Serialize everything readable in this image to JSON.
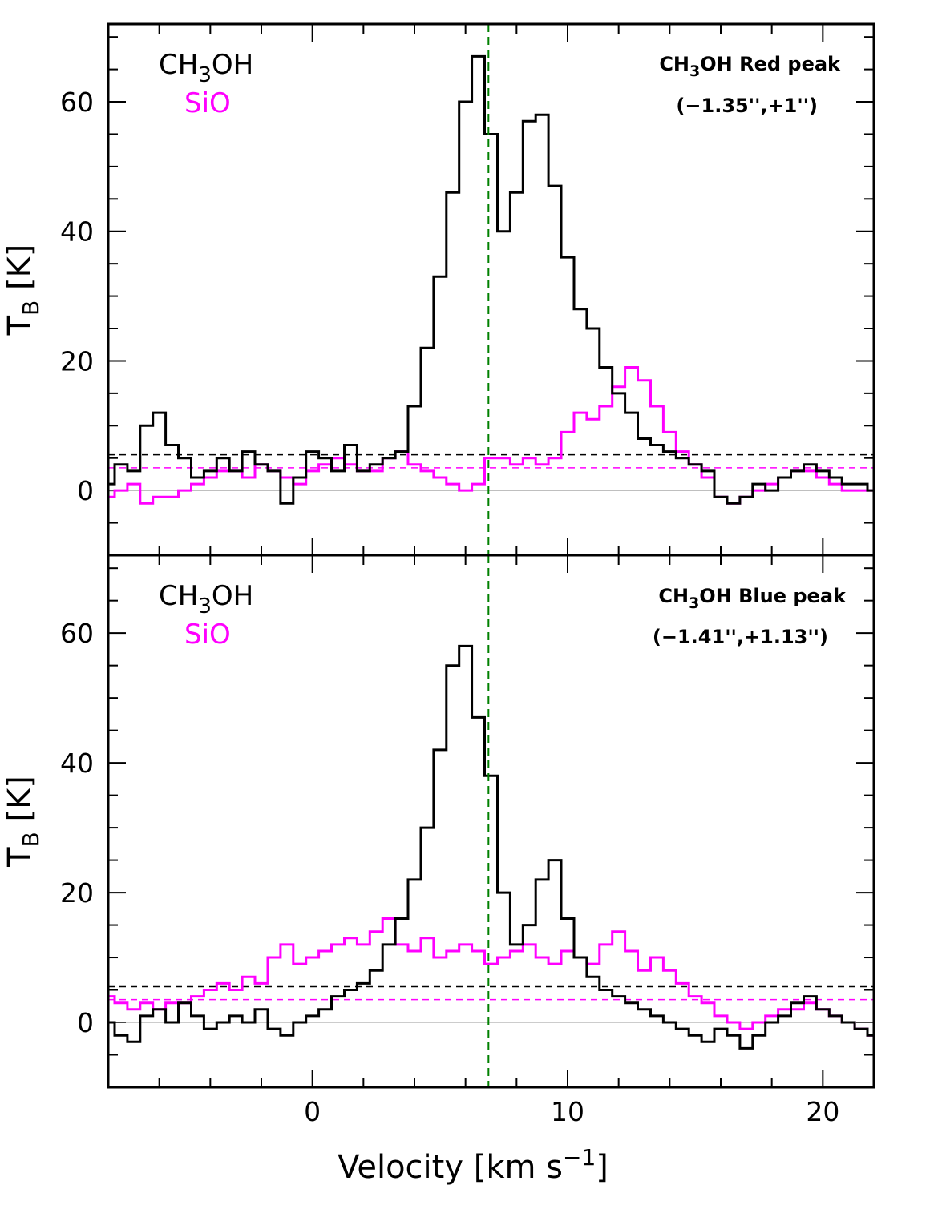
{
  "chart_data": {
    "type": "line",
    "step": true,
    "xlabel_main": "Velocity [km s",
    "xlabel_sup": "−1",
    "xlabel_end": "]",
    "xlim": [
      -8,
      22
    ],
    "xticks": [
      0,
      10,
      20
    ],
    "vline_x": 6.9,
    "colors": {
      "ch3oh": "#000000",
      "sio": "#ff00ff",
      "vline": "#008000",
      "zero": "#999999"
    },
    "panels": [
      {
        "ylabel_main": "T",
        "ylabel_sub": "B",
        "ylabel_end": " [K]",
        "ylim": [
          -10,
          72
        ],
        "yticks": [
          0,
          20,
          40,
          60
        ],
        "legend": {
          "ch3oh_pre": "CH",
          "ch3oh_sub": "3",
          "ch3oh_post": "OH",
          "sio": "SiO"
        },
        "annotation": {
          "line1_pre": "CH",
          "line1_sub": "3",
          "line1_post": "OH Red peak",
          "line2": "(−1.35'',+1'')"
        },
        "hlines": {
          "ch3oh": 5.5,
          "sio": 3.5
        },
        "series": [
          {
            "key": "ch3oh",
            "x": [
              -8,
              -7.5,
              -7,
              -6.5,
              -6,
              -5.5,
              -5,
              -4.5,
              -4,
              -3.5,
              -3,
              -2.5,
              -2,
              -1.5,
              -1,
              -0.5,
              0,
              0.5,
              1,
              1.5,
              2,
              2.5,
              3,
              3.5,
              4,
              4.5,
              5,
              5.5,
              6,
              6.5,
              7,
              7.5,
              8,
              8.5,
              9,
              9.5,
              10,
              10.5,
              11,
              11.5,
              12,
              12.5,
              13,
              13.5,
              14,
              14.5,
              15,
              15.5,
              16,
              16.5,
              17,
              17.5,
              18,
              18.5,
              19,
              19.5,
              20,
              20.5,
              21,
              21.5,
              22
            ],
            "values": [
              1,
              4,
              3,
              10,
              12,
              7,
              5,
              2,
              3,
              5,
              3,
              6,
              4,
              3,
              -2,
              2,
              6,
              5,
              3,
              7,
              3,
              4,
              5,
              6,
              13,
              22,
              33,
              46,
              60,
              67,
              55,
              40,
              46,
              57,
              58,
              47,
              36,
              28,
              25,
              19,
              15,
              12,
              8,
              7,
              6,
              5,
              4,
              3,
              -1,
              -2,
              -1,
              1,
              0,
              2,
              3,
              4,
              3,
              2,
              1,
              1,
              0
            ]
          },
          {
            "key": "sio",
            "x": [
              -8,
              -7.5,
              -7,
              -6.5,
              -6,
              -5.5,
              -5,
              -4.5,
              -4,
              -3.5,
              -3,
              -2.5,
              -2,
              -1.5,
              -1,
              -0.5,
              0,
              0.5,
              1,
              1.5,
              2,
              2.5,
              3,
              3.5,
              4,
              4.5,
              5,
              5.5,
              6,
              6.5,
              7,
              7.5,
              8,
              8.5,
              9,
              9.5,
              10,
              10.5,
              11,
              11.5,
              12,
              12.5,
              13,
              13.5,
              14,
              14.5,
              15,
              15.5,
              16,
              16.5,
              17,
              17.5,
              18,
              18.5,
              19,
              19.5,
              20,
              20.5,
              21,
              21.5,
              22
            ],
            "values": [
              -1,
              0,
              1,
              -2,
              -1,
              -1,
              0,
              1,
              2,
              3,
              3,
              2,
              4,
              3,
              2,
              1,
              3,
              4,
              5,
              4,
              3,
              3,
              5,
              6,
              4,
              3,
              2,
              1,
              0,
              1,
              5,
              5,
              4,
              5,
              4,
              5,
              9,
              12,
              11,
              13,
              16,
              19,
              17,
              13,
              9,
              6,
              4,
              2,
              -1,
              -2,
              -1,
              0,
              1,
              2,
              3,
              3,
              2,
              1,
              0,
              0,
              0
            ]
          }
        ]
      },
      {
        "ylabel_main": "T",
        "ylabel_sub": "B",
        "ylabel_end": " [K]",
        "ylim": [
          -10,
          72
        ],
        "yticks": [
          0,
          20,
          40,
          60
        ],
        "legend": {
          "ch3oh_pre": "CH",
          "ch3oh_sub": "3",
          "ch3oh_post": "OH",
          "sio": "SiO"
        },
        "annotation": {
          "line1_pre": "CH",
          "line1_sub": "3",
          "line1_post": "OH Blue peak",
          "line2": "(−1.41'',+1.13'')"
        },
        "hlines": {
          "ch3oh": 5.5,
          "sio": 3.5
        },
        "series": [
          {
            "key": "ch3oh",
            "x": [
              -8,
              -7.5,
              -7,
              -6.5,
              -6,
              -5.5,
              -5,
              -4.5,
              -4,
              -3.5,
              -3,
              -2.5,
              -2,
              -1.5,
              -1,
              -0.5,
              0,
              0.5,
              1,
              1.5,
              2,
              2.5,
              3,
              3.5,
              4,
              4.5,
              5,
              5.5,
              6,
              6.5,
              7,
              7.5,
              8,
              8.5,
              9,
              9.5,
              10,
              10.5,
              11,
              11.5,
              12,
              12.5,
              13,
              13.5,
              14,
              14.5,
              15,
              15.5,
              16,
              16.5,
              17,
              17.5,
              18,
              18.5,
              19,
              19.5,
              20,
              20.5,
              21,
              21.5,
              22
            ],
            "values": [
              0,
              -2,
              -3,
              1,
              2,
              0,
              3,
              1,
              -1,
              0,
              1,
              0,
              2,
              -1,
              -2,
              0,
              1,
              2,
              4,
              5,
              6,
              8,
              12,
              16,
              22,
              30,
              42,
              55,
              58,
              47,
              38,
              20,
              12,
              15,
              22,
              25,
              16,
              10,
              7,
              5,
              4,
              3,
              2,
              1,
              0,
              -1,
              -2,
              -3,
              -1,
              -2,
              -4,
              -2,
              0,
              1,
              3,
              4,
              2,
              1,
              0,
              -1,
              -2
            ]
          },
          {
            "key": "sio",
            "x": [
              -8,
              -7.5,
              -7,
              -6.5,
              -6,
              -5.5,
              -5,
              -4.5,
              -4,
              -3.5,
              -3,
              -2.5,
              -2,
              -1.5,
              -1,
              -0.5,
              0,
              0.5,
              1,
              1.5,
              2,
              2.5,
              3,
              3.5,
              4,
              4.5,
              5,
              5.5,
              6,
              6.5,
              7,
              7.5,
              8,
              8.5,
              9,
              9.5,
              10,
              10.5,
              11,
              11.5,
              12,
              12.5,
              13,
              13.5,
              14,
              14.5,
              15,
              15.5,
              16,
              16.5,
              17,
              17.5,
              18,
              18.5,
              19,
              19.5,
              20,
              20.5,
              21,
              21.5,
              22
            ],
            "values": [
              4,
              3,
              2,
              3,
              2,
              3,
              3,
              4,
              5,
              6,
              5,
              7,
              6,
              10,
              12,
              9,
              10,
              11,
              12,
              13,
              12,
              14,
              16,
              12,
              11,
              13,
              10,
              11,
              12,
              11,
              9,
              10,
              11,
              12,
              10,
              9,
              11,
              10,
              9,
              12,
              14,
              11,
              8,
              10,
              8,
              6,
              4,
              3,
              1,
              0,
              -1,
              0,
              1,
              2,
              2,
              3,
              2,
              1,
              0,
              -1,
              -2
            ]
          }
        ]
      }
    ]
  }
}
